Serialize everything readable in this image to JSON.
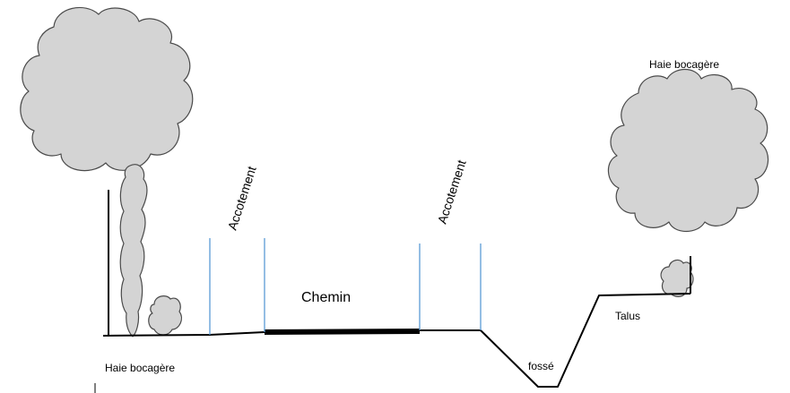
{
  "labels": {
    "hedge_top_right": "Haie bocagère",
    "verge_left": "Accotement",
    "verge_right": "Accotement",
    "path": "Chemin",
    "hedge_bottom_left": "Haie bocagère",
    "ditch": "fossé",
    "embankment": "Talus"
  },
  "colors": {
    "foliage_fill": "#d4d4d4",
    "foliage_stroke": "#4a4a4a",
    "divider": "#5b9bd5",
    "ground": "#000000"
  }
}
